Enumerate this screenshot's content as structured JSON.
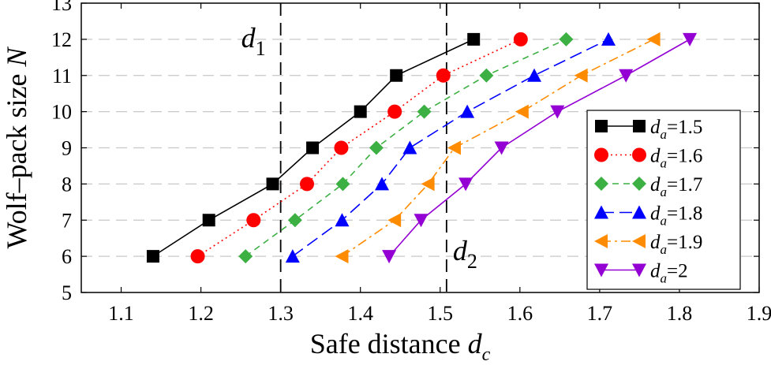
{
  "chart_data": {
    "type": "line",
    "title": "",
    "xlabel": {
      "main": "Safe distance ",
      "var": "d",
      "sub": "c"
    },
    "ylabel": "Wolf–pack size N",
    "xlim": [
      1.05,
      1.9
    ],
    "ylim": [
      5,
      13
    ],
    "xticks": [
      "1.1",
      "1.2",
      "1.3",
      "1.4",
      "1.5",
      "1.6",
      "1.7",
      "1.8",
      "1.9"
    ],
    "yticks": [
      "5",
      "6",
      "7",
      "8",
      "9",
      "10",
      "11",
      "12",
      "13"
    ],
    "grid": "horizontal-dashed",
    "legend_position": "right",
    "reference_lines": [
      {
        "label_var": "d",
        "label_sub": "1",
        "x": 1.3
      },
      {
        "label_var": "d",
        "label_sub": "2",
        "x": 1.508
      }
    ],
    "series": [
      {
        "name": "d_a=1.5",
        "legend_var": "d",
        "legend_sub": "a",
        "legend_value": "=1.5",
        "color": "#000000",
        "marker": "square",
        "dash": "solid",
        "x": [
          1.14,
          1.21,
          1.29,
          1.34,
          1.4,
          1.445,
          1.542
        ],
        "y": [
          6,
          7,
          8,
          9,
          10,
          11,
          12
        ]
      },
      {
        "name": "d_a=1.6",
        "legend_var": "d",
        "legend_sub": "a",
        "legend_value": "=1.6",
        "color": "#ff0000",
        "marker": "circle",
        "dash": "dotted",
        "x": [
          1.196,
          1.266,
          1.333,
          1.376,
          1.443,
          1.504,
          1.601
        ],
        "y": [
          6,
          7,
          8,
          9,
          10,
          11,
          12
        ]
      },
      {
        "name": "d_a=1.7",
        "legend_var": "d",
        "legend_sub": "a",
        "legend_value": "=1.7",
        "color": "#3cb043",
        "marker": "diamond",
        "dash": "dashed",
        "x": [
          1.256,
          1.318,
          1.378,
          1.42,
          1.48,
          1.558,
          1.658
        ],
        "y": [
          6,
          7,
          8,
          9,
          10,
          11,
          12
        ]
      },
      {
        "name": "d_a=1.8",
        "legend_var": "d",
        "legend_sub": "a",
        "legend_value": "=1.8",
        "color": "#0000ff",
        "marker": "triangle-up",
        "dash": "longdash",
        "x": [
          1.315,
          1.377,
          1.427,
          1.462,
          1.534,
          1.618,
          1.711
        ],
        "y": [
          6,
          7,
          8,
          9,
          10,
          11,
          12
        ]
      },
      {
        "name": "d_a=1.9",
        "legend_var": "d",
        "legend_sub": "a",
        "legend_value": "=1.9",
        "color": "#ff8c00",
        "marker": "triangle-left",
        "dash": "dashdot",
        "x": [
          1.377,
          1.443,
          1.485,
          1.518,
          1.603,
          1.677,
          1.768
        ],
        "y": [
          6,
          7,
          8,
          9,
          10,
          11,
          12
        ]
      },
      {
        "name": "d_a=2",
        "legend_var": "d",
        "legend_sub": "a",
        "legend_value": "=2",
        "color": "#9400d3",
        "marker": "triangle-down",
        "dash": "solid",
        "x": [
          1.436,
          1.476,
          1.532,
          1.577,
          1.647,
          1.733,
          1.813
        ],
        "y": [
          6,
          7,
          8,
          9,
          10,
          11,
          12
        ]
      }
    ]
  }
}
